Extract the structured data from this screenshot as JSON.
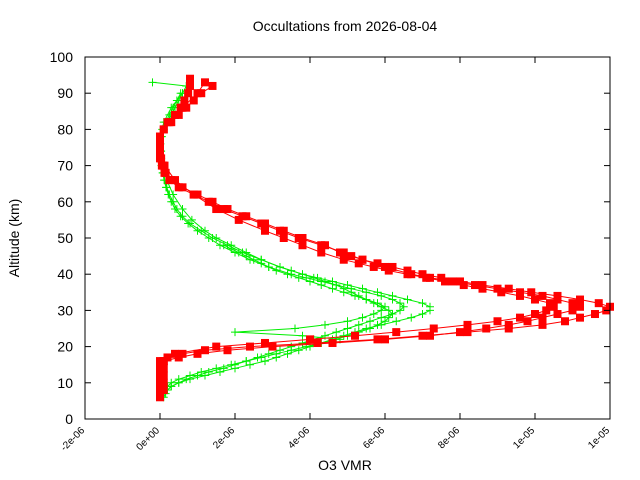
{
  "chart_data": {
    "type": "scatter",
    "title": "Occultations from 2026-08-04",
    "xlabel": "O3 VMR",
    "ylabel": "Altitude (km)",
    "xlim": [
      -2e-06,
      1.2e-05
    ],
    "ylim": [
      0,
      100
    ],
    "x_ticks": [
      -2e-06,
      0,
      2e-06,
      4e-06,
      6e-06,
      8e-06,
      1e-05,
      1.2e-05
    ],
    "x_tick_labels": [
      "-2e-06",
      "0e+00",
      "2e-06",
      "4e-06",
      "6e-06",
      "8e-06",
      "1e-05",
      "1e-05"
    ],
    "y_ticks": [
      0,
      10,
      20,
      30,
      40,
      50,
      60,
      70,
      80,
      90,
      100
    ],
    "y_tick_labels": [
      "0",
      "10",
      "20",
      "30",
      "40",
      "50",
      "60",
      "70",
      "80",
      "90",
      "100"
    ],
    "grid": false,
    "series": [
      {
        "color": "#ff0000",
        "marker": "square",
        "line": true,
        "profiles": [
          {
            "y": [
              6,
              8,
              10,
              12,
              14,
              16,
              17,
              18,
              19,
              20,
              21,
              22,
              23,
              24,
              25,
              26,
              27,
              28,
              29,
              30,
              31,
              32,
              33,
              34,
              35,
              36,
              37,
              38,
              39,
              40,
              41,
              42,
              43,
              44,
              45,
              46,
              48,
              50,
              52,
              54,
              56,
              58,
              60,
              62,
              64,
              66,
              68,
              70,
              72,
              74,
              76,
              78,
              80,
              82,
              84,
              86,
              88,
              90,
              92,
              94
            ],
            "x": [
              0.0,
              0.0,
              0.0,
              0.0,
              0.0,
              0.0,
              2e-07,
              6e-07,
              1.2e-06,
              2.4e-06,
              4.2e-06,
              5.8e-06,
              7e-06,
              8.2e-06,
              9.3e-06,
              1.02e-05,
              1.08e-05,
              1.12e-05,
              1.16e-05,
              1.19e-05,
              1.2e-05,
              1.17e-05,
              1.12e-05,
              1.06e-05,
              9.9e-06,
              9.3e-06,
              8.6e-06,
              8e-06,
              7.5e-06,
              7e-06,
              6.6e-06,
              6.2e-06,
              5.8e-06,
              5.4e-06,
              5.1e-06,
              4.8e-06,
              4.4e-06,
              3.8e-06,
              3.3e-06,
              2.8e-06,
              2.3e-06,
              1.8e-06,
              1.4e-06,
              1e-06,
              6e-07,
              3e-07,
              1.5e-07,
              8e-08,
              3e-08,
              0.0,
              0.0,
              0.0,
              1e-07,
              2.5e-07,
              4e-07,
              5.5e-07,
              6.5e-07,
              7.5e-07,
              8e-07,
              8e-07
            ]
          },
          {
            "y": [
              7,
              9,
              11,
              13,
              15,
              16,
              17,
              18,
              19,
              20,
              21,
              22,
              23,
              24,
              25,
              26,
              27,
              28,
              29,
              30,
              31,
              32,
              33,
              34,
              35,
              36,
              37,
              38,
              39,
              40,
              42,
              44,
              46,
              48,
              50,
              52,
              54,
              56,
              58,
              60,
              62,
              64,
              66,
              68,
              70,
              72,
              74,
              76,
              78,
              80,
              82,
              84,
              86,
              88,
              90,
              92
            ],
            "x": [
              0.0,
              0.0,
              0.0,
              0.0,
              0.0,
              1e-07,
              5e-07,
              1e-06,
              1.8e-06,
              3e-06,
              4.6e-06,
              6e-06,
              7.2e-06,
              8e-06,
              8.7e-06,
              9.3e-06,
              9.8e-06,
              1.02e-05,
              1.06e-05,
              1.1e-05,
              1.12e-05,
              1.1e-05,
              1.06e-05,
              1.02e-05,
              9.6e-06,
              9e-06,
              8.4e-06,
              7.8e-06,
              7.2e-06,
              6.7e-06,
              6e-06,
              5.4e-06,
              4.9e-06,
              4.3e-06,
              3.7e-06,
              3.2e-06,
              2.7e-06,
              2.2e-06,
              1.7e-06,
              1.3e-06,
              9e-07,
              5e-07,
              2.5e-07,
              1.2e-07,
              5e-08,
              0.0,
              0.0,
              0.0,
              0.0,
              1e-07,
              3e-07,
              5e-07,
              7e-07,
              9e-07,
              1.1e-06,
              1.4e-06
            ]
          },
          {
            "y": [
              8,
              10,
              12,
              14,
              16,
              18,
              20,
              21,
              22,
              23,
              24,
              25,
              26,
              27,
              28,
              29,
              30,
              31,
              32,
              33,
              34,
              35,
              36,
              37,
              38,
              39,
              40,
              41,
              42,
              43,
              44,
              46,
              48,
              50,
              52,
              55,
              58,
              62,
              66,
              70,
              74,
              78,
              82,
              86,
              90,
              93
            ],
            "x": [
              1e-07,
              1e-07,
              1e-07,
              1e-07,
              1e-07,
              4e-07,
              1.5e-06,
              2.8e-06,
              4e-06,
              5.2e-06,
              6.3e-06,
              7.3e-06,
              8.2e-06,
              9e-06,
              9.6e-06,
              1e-05,
              1.03e-05,
              1.05e-05,
              1.04e-05,
              1e-05,
              9.6e-06,
              9.1e-06,
              8.6e-06,
              8.1e-06,
              7.6e-06,
              7.1e-06,
              6.6e-06,
              6.1e-06,
              5.7e-06,
              5.3e-06,
              4.9e-06,
              4.3e-06,
              3.8e-06,
              3.3e-06,
              2.8e-06,
              2.1e-06,
              1.5e-06,
              9e-07,
              4e-07,
              1.2e-07,
              0.0,
              0.0,
              2e-07,
              6e-07,
              1e-06,
              1.2e-06
            ]
          }
        ]
      },
      {
        "color": "#00ee00",
        "marker": "plus",
        "line": true,
        "profiles": [
          {
            "y": [
              6,
              7,
              8,
              9,
              10,
              11,
              12,
              13,
              14,
              15,
              16,
              17,
              18,
              19,
              20,
              21,
              22,
              23,
              24,
              25,
              26,
              27,
              28,
              29,
              30,
              31,
              32,
              33,
              34,
              35,
              36,
              37,
              38,
              39,
              40,
              42,
              44,
              46,
              48,
              50,
              52,
              54,
              56,
              58,
              60,
              62,
              64,
              66,
              68,
              70,
              72,
              74,
              76,
              78,
              80,
              82,
              84,
              86,
              88,
              90,
              92,
              93
            ],
            "x": [
              1e-07,
              1.5e-07,
              2e-07,
              3e-07,
              5e-07,
              8e-07,
              1.2e-06,
              1.6e-06,
              2e-06,
              2.4e-06,
              2.8e-06,
              3.1e-06,
              3.4e-06,
              3.7e-06,
              4e-06,
              4.3e-06,
              4.6e-06,
              4.9e-06,
              5.2e-06,
              5.5e-06,
              5.9e-06,
              6.3e-06,
              6.7e-06,
              7e-06,
              7.2e-06,
              7.2e-06,
              7e-06,
              6.6e-06,
              6.2e-06,
              5.8e-06,
              5.4e-06,
              5e-06,
              4.6e-06,
              4.2e-06,
              3.8e-06,
              3.2e-06,
              2.7e-06,
              2.2e-06,
              1.8e-06,
              1.4e-06,
              1.1e-06,
              8e-07,
              6e-07,
              4.5e-07,
              3.5e-07,
              2.5e-07,
              1.8e-07,
              1.2e-07,
              8e-08,
              5e-08,
              3e-08,
              2e-08,
              1e-08,
              5e-08,
              1e-07,
              2e-07,
              3e-07,
              4e-07,
              5e-07,
              6e-07,
              7e-07,
              -2e-07
            ]
          },
          {
            "y": [
              7,
              8,
              9,
              10,
              11,
              12,
              13,
              14,
              15,
              16,
              17,
              18,
              19,
              20,
              21,
              22,
              23,
              24,
              25,
              26,
              27,
              28,
              29,
              30,
              31,
              32,
              33,
              34,
              35,
              36,
              37,
              38,
              39,
              40,
              42,
              44,
              46,
              48,
              50,
              52,
              54,
              56,
              58,
              60,
              62,
              64,
              66,
              68,
              70,
              72,
              74,
              76,
              78,
              80,
              82,
              84,
              86,
              88,
              90
            ],
            "x": [
              1e-07,
              2e-07,
              3e-07,
              5e-07,
              7e-07,
              1e-06,
              1.3e-06,
              1.7e-06,
              2e-06,
              2.3e-06,
              2.6e-06,
              2.9e-06,
              3.2e-06,
              3.5e-06,
              3.8e-06,
              4.1e-06,
              4.4e-06,
              4.7e-06,
              5e-06,
              5.3e-06,
              5.6e-06,
              5.9e-06,
              6.2e-06,
              6.4e-06,
              6.5e-06,
              6.4e-06,
              6.2e-06,
              5.9e-06,
              5.5e-06,
              5.1e-06,
              4.7e-06,
              4.3e-06,
              3.9e-06,
              3.5e-06,
              2.9e-06,
              2.4e-06,
              2e-06,
              1.6e-06,
              1.3e-06,
              1e-06,
              7.5e-07,
              5.5e-07,
              4e-07,
              3e-07,
              2.2e-07,
              1.6e-07,
              1.1e-07,
              7e-08,
              4e-08,
              2e-08,
              1e-08,
              0.0,
              2e-08,
              6e-08,
              1.5e-07,
              2.5e-07,
              3.5e-07,
              4.5e-07,
              5.5e-07
            ]
          },
          {
            "y": [
              8,
              9,
              10,
              11,
              12,
              13,
              14,
              15,
              16,
              17,
              18,
              19,
              20,
              21,
              22,
              23,
              24,
              25,
              26,
              27,
              28,
              29,
              30,
              31,
              32,
              33,
              34,
              35,
              36,
              37,
              38,
              39,
              40,
              41,
              42,
              44,
              46,
              48,
              50,
              52,
              55,
              58,
              62,
              66,
              70,
              74,
              78,
              82,
              86,
              90
            ],
            "x": [
              1e-07,
              2e-07,
              3e-07,
              5e-07,
              8e-07,
              1.1e-06,
              1.5e-06,
              1.9e-06,
              2.3e-06,
              2.7e-06,
              3.1e-06,
              3.5e-06,
              3.9e-06,
              4.3e-06,
              4.7e-06,
              5e-06,
              5.3e-06,
              5.6e-06,
              5.8e-06,
              6e-06,
              6.1e-06,
              6.2e-06,
              6.1e-06,
              5.9e-06,
              5.7e-06,
              5.5e-06,
              5.3e-06,
              5.1e-06,
              4.9e-06,
              4.7e-06,
              4.4e-06,
              4.1e-06,
              3.8e-06,
              3.5e-06,
              3.2e-06,
              2.7e-06,
              2.3e-06,
              1.9e-06,
              1.5e-06,
              1.2e-06,
              8.5e-07,
              6e-07,
              3.5e-07,
              1.8e-07,
              8e-08,
              3e-08,
              1e-08,
              1e-07,
              3e-07,
              6e-07
            ]
          },
          {
            "y": [
              22,
              23,
              24,
              25,
              26,
              27,
              28,
              29,
              30,
              31,
              32,
              33,
              34,
              35,
              36,
              37,
              38,
              39,
              40,
              41,
              42,
              43,
              44,
              45,
              46,
              47,
              48
            ],
            "x": [
              4.8e-06,
              3.8e-06,
              2e-06,
              3.6e-06,
              4.4e-06,
              5e-06,
              5.4e-06,
              5.7e-06,
              5.9e-06,
              6e-06,
              5.8e-06,
              5.5e-06,
              5.2e-06,
              4.9e-06,
              4.6e-06,
              4.3e-06,
              4e-06,
              3.7e-06,
              3.4e-06,
              3.1e-06,
              2.9e-06,
              2.7e-06,
              2.5e-06,
              2.3e-06,
              2.1e-06,
              1.9e-06,
              1.7e-06
            ]
          }
        ]
      }
    ]
  }
}
